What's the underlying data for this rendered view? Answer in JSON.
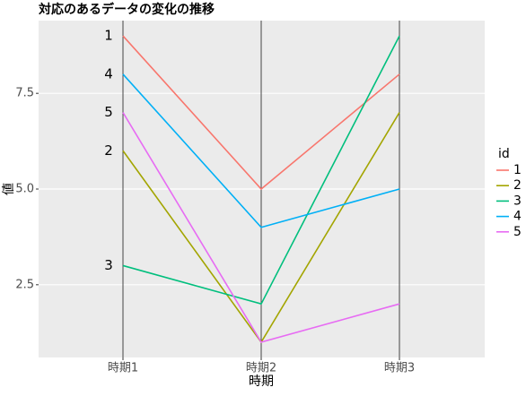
{
  "chart_data": {
    "type": "line",
    "title": "対応のあるデータの変化の推移",
    "x_label": "時期",
    "y_label": "値",
    "legend_title": "id",
    "categories": [
      "時期1",
      "時期2",
      "時期3"
    ],
    "series": [
      {
        "name": "1",
        "color": "#F8766D",
        "values": [
          9,
          5,
          8
        ]
      },
      {
        "name": "2",
        "color": "#A3A500",
        "values": [
          6,
          1,
          7
        ]
      },
      {
        "name": "3",
        "color": "#00BF7D",
        "values": [
          3,
          2,
          9
        ]
      },
      {
        "name": "4",
        "color": "#00B0F6",
        "values": [
          8,
          4,
          5
        ]
      },
      {
        "name": "5",
        "color": "#E76BF3",
        "values": [
          7,
          1,
          2
        ]
      }
    ],
    "ylim": [
      0.6,
      9.4
    ],
    "yticks": [
      2.5,
      {
        "value": 5,
        "label": "5.0"
      },
      7.5
    ],
    "grid": true,
    "legend_position": "right"
  }
}
